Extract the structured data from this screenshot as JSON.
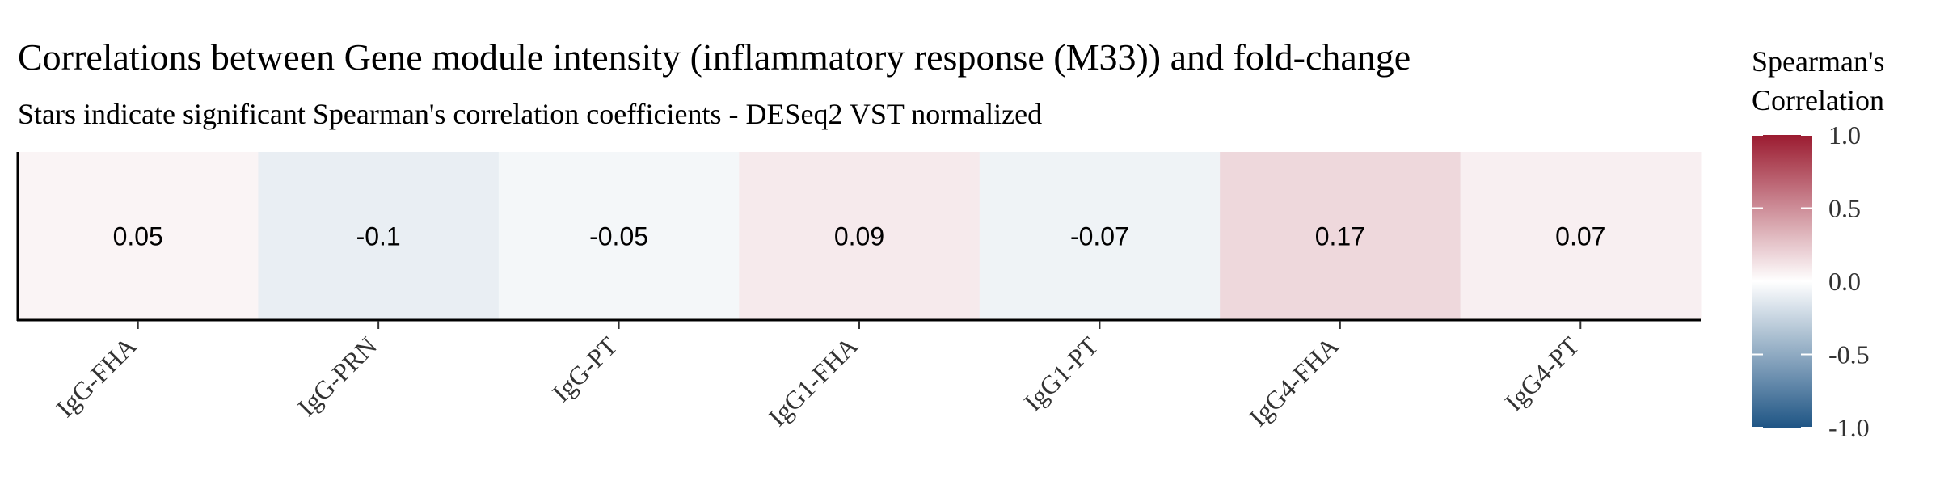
{
  "chart_data": {
    "type": "heatmap",
    "title": "Correlations between Gene module intensity (inflammatory response (M33)) and fold-change",
    "subtitle": "Stars indicate significant Spearman's correlation coefficients - DESeq2 VST normalized",
    "categories": [
      "IgG-FHA",
      "IgG-PRN",
      "IgG-PT",
      "IgG1-FHA",
      "IgG1-PT",
      "IgG4-FHA",
      "IgG4-PT"
    ],
    "values": [
      0.05,
      -0.1,
      -0.05,
      0.09,
      -0.07,
      0.17,
      0.07
    ],
    "value_labels": [
      "0.05",
      "-0.1",
      "-0.05",
      "0.09",
      "-0.07",
      "0.17",
      "0.07"
    ],
    "legend": {
      "title_lines": [
        "Spearman's",
        "Correlation"
      ],
      "ticks": [
        1.0,
        0.5,
        0.0,
        -0.5,
        -1.0
      ],
      "tick_labels": [
        "1.0",
        "0.5",
        "0.0",
        "-0.5",
        "-1.0"
      ],
      "range": [
        -1.0,
        1.0
      ],
      "placement": "right"
    },
    "colors": {
      "low": "#1f5585",
      "mid": "#ffffff",
      "high": "#9b1b30"
    }
  }
}
